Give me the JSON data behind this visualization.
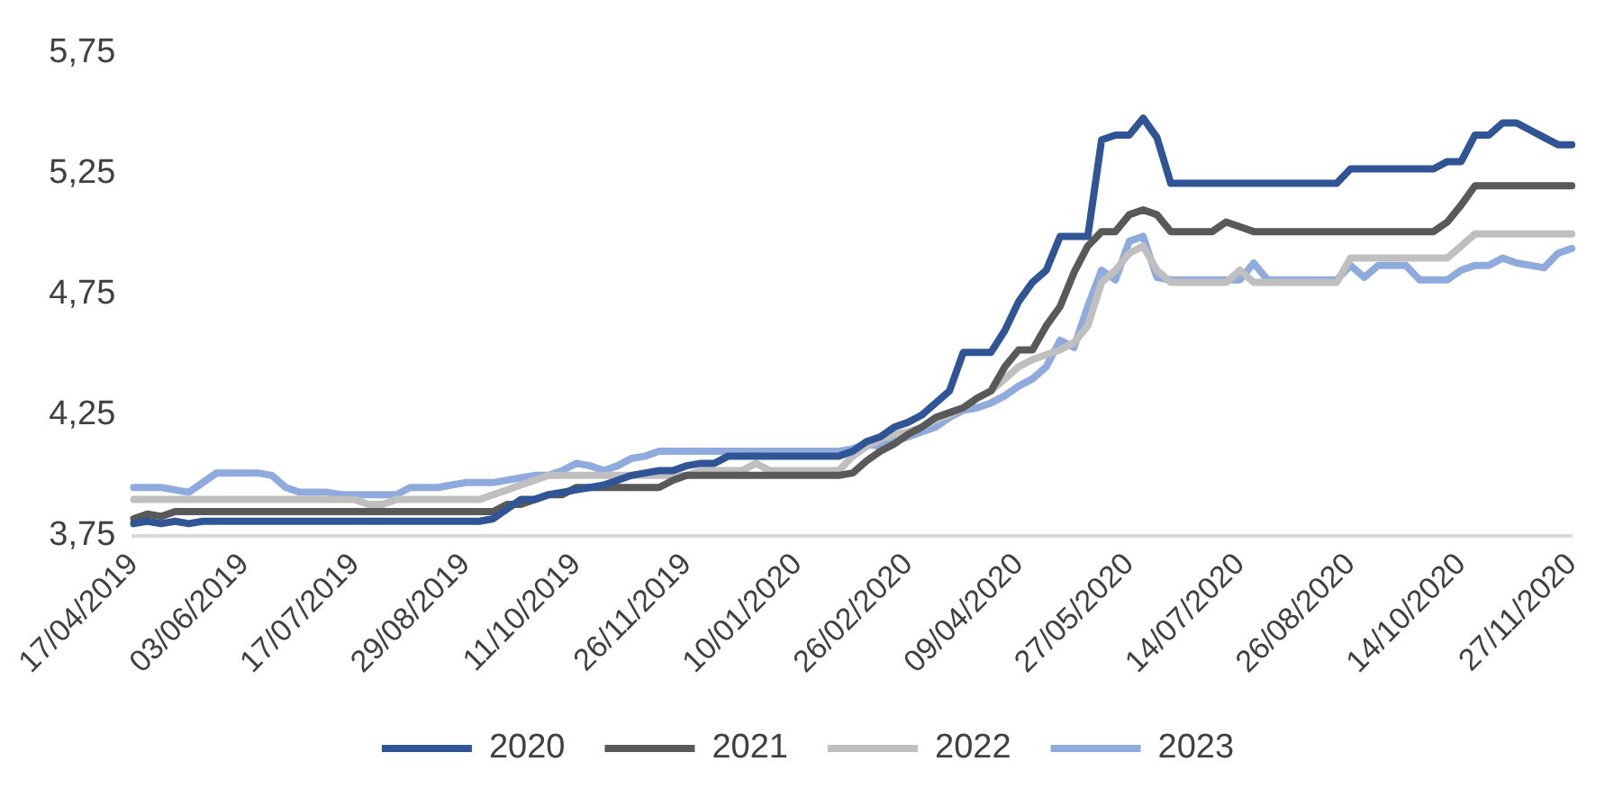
{
  "chart_data": {
    "type": "line",
    "categories": [
      "17/04/2019",
      null,
      null,
      null,
      null,
      null,
      null,
      null,
      "03/06/2019",
      null,
      null,
      null,
      null,
      null,
      null,
      null,
      "17/07/2019",
      null,
      null,
      null,
      null,
      null,
      null,
      null,
      "29/08/2019",
      null,
      null,
      null,
      null,
      null,
      null,
      null,
      "11/10/2019",
      null,
      null,
      null,
      null,
      null,
      null,
      null,
      "26/11/2019",
      null,
      null,
      null,
      null,
      null,
      null,
      null,
      "10/01/2020",
      null,
      null,
      null,
      null,
      null,
      null,
      null,
      "26/02/2020",
      null,
      null,
      null,
      null,
      null,
      null,
      null,
      "09/04/2020",
      null,
      null,
      null,
      null,
      null,
      null,
      null,
      "27/05/2020",
      null,
      null,
      null,
      null,
      null,
      null,
      null,
      "14/07/2020",
      null,
      null,
      null,
      null,
      null,
      null,
      null,
      "26/08/2020",
      null,
      null,
      null,
      null,
      null,
      null,
      null,
      "14/10/2020",
      null,
      null,
      null,
      null,
      null,
      null,
      null,
      "27/11/2020"
    ],
    "series": [
      {
        "name": "2020",
        "color": "#2f5597",
        "values": [
          3.8,
          3.81,
          3.8,
          3.81,
          3.8,
          3.81,
          3.81,
          3.81,
          3.81,
          3.81,
          3.81,
          3.81,
          3.81,
          3.81,
          3.81,
          3.81,
          3.81,
          3.81,
          3.81,
          3.81,
          3.81,
          3.81,
          3.81,
          3.81,
          3.81,
          3.81,
          3.82,
          3.86,
          3.9,
          3.9,
          3.92,
          3.93,
          3.94,
          3.95,
          3.96,
          3.98,
          4.0,
          4.01,
          4.02,
          4.02,
          4.04,
          4.05,
          4.05,
          4.08,
          4.08,
          4.08,
          4.08,
          4.08,
          4.08,
          4.08,
          4.08,
          4.08,
          4.1,
          4.14,
          4.16,
          4.2,
          4.22,
          4.25,
          4.3,
          4.35,
          4.51,
          4.51,
          4.51,
          4.6,
          4.72,
          4.8,
          4.85,
          4.99,
          4.99,
          4.99,
          5.39,
          5.41,
          5.41,
          5.48,
          5.4,
          5.21,
          5.21,
          5.21,
          5.21,
          5.21,
          5.21,
          5.21,
          5.21,
          5.21,
          5.21,
          5.21,
          5.21,
          5.21,
          5.27,
          5.27,
          5.27,
          5.27,
          5.27,
          5.27,
          5.27,
          5.3,
          5.3,
          5.41,
          5.41,
          5.46,
          5.46,
          5.43,
          5.4,
          5.37,
          5.37
        ]
      },
      {
        "name": "2021",
        "color": "#595959",
        "values": [
          3.82,
          3.84,
          3.83,
          3.85,
          3.85,
          3.85,
          3.85,
          3.85,
          3.85,
          3.85,
          3.85,
          3.85,
          3.85,
          3.85,
          3.85,
          3.85,
          3.85,
          3.85,
          3.85,
          3.85,
          3.85,
          3.85,
          3.85,
          3.85,
          3.85,
          3.85,
          3.85,
          3.88,
          3.88,
          3.9,
          3.92,
          3.92,
          3.95,
          3.95,
          3.95,
          3.95,
          3.95,
          3.95,
          3.95,
          3.98,
          4.0,
          4.0,
          4.0,
          4.0,
          4.0,
          4.0,
          4.0,
          4.0,
          4.0,
          4.0,
          4.0,
          4.0,
          4.01,
          4.06,
          4.1,
          4.13,
          4.17,
          4.2,
          4.24,
          4.26,
          4.28,
          4.32,
          4.35,
          4.45,
          4.52,
          4.52,
          4.62,
          4.7,
          4.84,
          4.95,
          5.01,
          5.01,
          5.08,
          5.1,
          5.08,
          5.01,
          5.01,
          5.01,
          5.01,
          5.05,
          5.03,
          5.01,
          5.01,
          5.01,
          5.01,
          5.01,
          5.01,
          5.01,
          5.01,
          5.01,
          5.01,
          5.01,
          5.01,
          5.01,
          5.01,
          5.05,
          5.12,
          5.2,
          5.2,
          5.2,
          5.2,
          5.2,
          5.2,
          5.2,
          5.2
        ]
      },
      {
        "name": "2022",
        "color": "#bfbfbf",
        "values": [
          3.9,
          3.9,
          3.9,
          3.9,
          3.9,
          3.9,
          3.9,
          3.9,
          3.9,
          3.9,
          3.9,
          3.9,
          3.9,
          3.9,
          3.9,
          3.9,
          3.9,
          3.88,
          3.88,
          3.9,
          3.9,
          3.9,
          3.9,
          3.9,
          3.9,
          3.9,
          3.92,
          3.94,
          3.96,
          3.98,
          4.0,
          4.0,
          4.0,
          4.0,
          4.0,
          4.0,
          4.0,
          4.0,
          4.0,
          4.0,
          4.0,
          4.02,
          4.02,
          4.02,
          4.02,
          4.05,
          4.02,
          4.02,
          4.02,
          4.02,
          4.02,
          4.02,
          4.08,
          4.12,
          4.15,
          4.17,
          4.18,
          4.2,
          4.23,
          4.25,
          4.28,
          4.32,
          4.35,
          4.4,
          4.45,
          4.48,
          4.5,
          4.52,
          4.55,
          4.62,
          4.8,
          4.85,
          4.92,
          4.95,
          4.85,
          4.8,
          4.8,
          4.8,
          4.8,
          4.8,
          4.85,
          4.8,
          4.8,
          4.8,
          4.8,
          4.8,
          4.8,
          4.8,
          4.9,
          4.9,
          4.9,
          4.9,
          4.9,
          4.9,
          4.9,
          4.9,
          4.95,
          5.0,
          5.0,
          5.0,
          5.0,
          5.0,
          5.0,
          5.0,
          5.0
        ]
      },
      {
        "name": "2023",
        "color": "#8faadc",
        "values": [
          3.95,
          3.95,
          3.95,
          3.94,
          3.93,
          3.97,
          4.01,
          4.01,
          4.01,
          4.01,
          4.0,
          3.95,
          3.93,
          3.93,
          3.93,
          3.92,
          3.92,
          3.92,
          3.92,
          3.92,
          3.95,
          3.95,
          3.95,
          3.96,
          3.97,
          3.97,
          3.97,
          3.98,
          3.99,
          4.0,
          4.0,
          4.02,
          4.05,
          4.04,
          4.02,
          4.04,
          4.07,
          4.08,
          4.1,
          4.1,
          4.1,
          4.1,
          4.1,
          4.1,
          4.1,
          4.1,
          4.1,
          4.1,
          4.1,
          4.1,
          4.1,
          4.1,
          4.11,
          4.13,
          4.12,
          4.14,
          4.16,
          4.18,
          4.2,
          4.24,
          4.27,
          4.28,
          4.3,
          4.33,
          4.37,
          4.4,
          4.45,
          4.56,
          4.53,
          4.7,
          4.85,
          4.81,
          4.97,
          4.99,
          4.82,
          4.81,
          4.81,
          4.81,
          4.81,
          4.81,
          4.81,
          4.88,
          4.81,
          4.81,
          4.81,
          4.81,
          4.81,
          4.81,
          4.87,
          4.82,
          4.87,
          4.87,
          4.87,
          4.81,
          4.81,
          4.81,
          4.85,
          4.87,
          4.87,
          4.9,
          4.88,
          4.87,
          4.86,
          4.92,
          4.94
        ]
      }
    ],
    "ylim": [
      3.75,
      5.75
    ],
    "yticks": [
      {
        "value": 3.75,
        "label": "3,75"
      },
      {
        "value": 4.25,
        "label": "4,25"
      },
      {
        "value": 4.75,
        "label": "4,75"
      },
      {
        "value": 5.25,
        "label": "5,25"
      },
      {
        "value": 5.75,
        "label": "5,75"
      }
    ],
    "legend": "bottom",
    "marker": "none",
    "line_style": "solid"
  }
}
